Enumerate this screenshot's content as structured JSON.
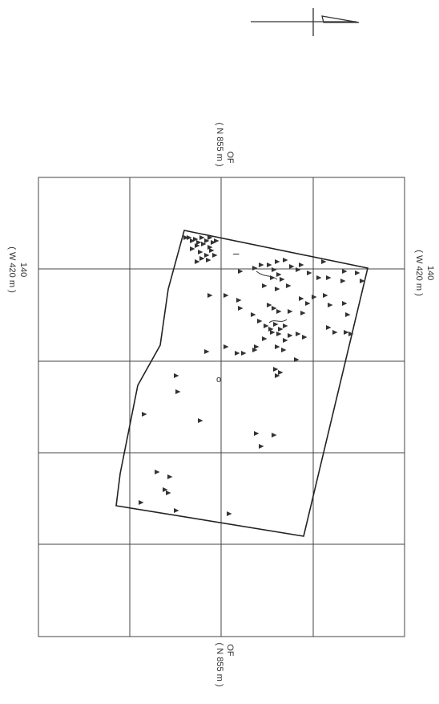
{
  "north_arrow": {
    "icon": "north-arrow-icon"
  },
  "grid": {
    "columns": 4,
    "rows": 5
  },
  "labels": {
    "top": {
      "line1": "OF",
      "line2": "( N 855 m )"
    },
    "bottom": {
      "line1": "OF",
      "line2": "( N 855 m )"
    },
    "left": {
      "line1": "140",
      "line2": "( W 420 m )"
    },
    "right": {
      "line1": "140",
      "line2": "( W 420 m )"
    }
  },
  "annotations": {
    "mark_circle": "o",
    "mark_bar": "I"
  },
  "marker": {
    "icon": "triangle-find-marker-icon",
    "color": "#333333"
  }
}
